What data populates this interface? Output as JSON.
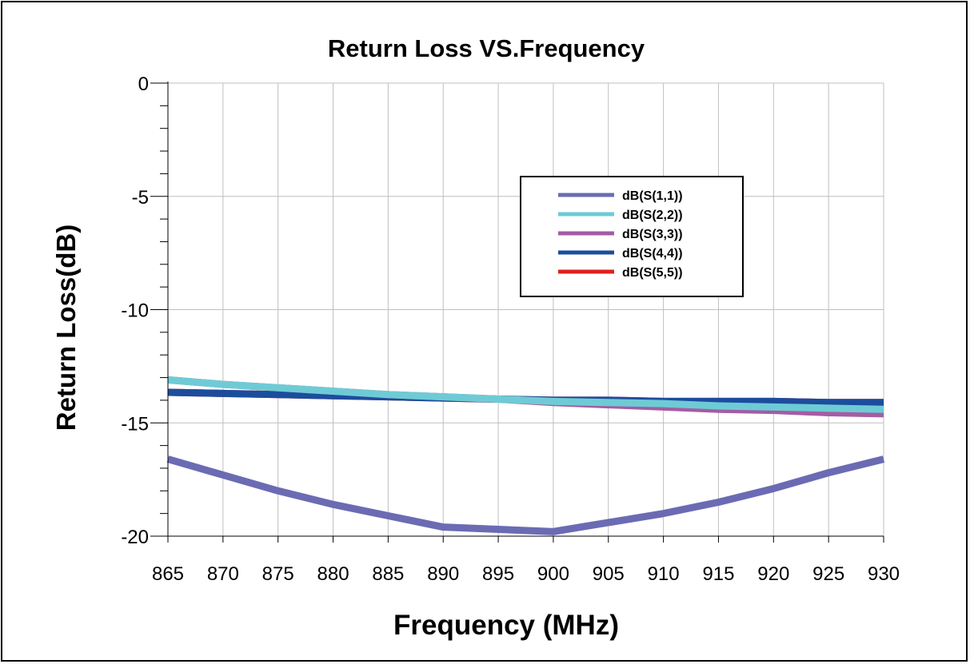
{
  "chart_data": {
    "type": "line",
    "title": "Return Loss VS.Frequency",
    "xlabel": "Frequency (MHz)",
    "ylabel": "Return Loss(dB)",
    "xlim": [
      865,
      930
    ],
    "ylim": [
      -20,
      0
    ],
    "x_ticks": [
      865,
      870,
      875,
      880,
      885,
      890,
      895,
      900,
      905,
      910,
      915,
      920,
      925,
      930
    ],
    "y_ticks": [
      0,
      -5,
      -10,
      -15,
      -20
    ],
    "grid": true,
    "legend_position": "upper-right",
    "x": [
      865,
      870,
      875,
      880,
      885,
      890,
      895,
      900,
      905,
      910,
      915,
      920,
      925,
      930
    ],
    "series": [
      {
        "name": "dB(S(1,1))",
        "color": "#6b6bb4",
        "values": [
          -16.6,
          -17.3,
          -18.0,
          -18.6,
          -19.1,
          -19.6,
          -19.7,
          -19.8,
          -19.4,
          -19.0,
          -18.5,
          -17.9,
          -17.2,
          -16.6
        ]
      },
      {
        "name": "dB(S(2,2))",
        "color": "#6ecbd5",
        "values": [
          -13.1,
          -13.3,
          -13.45,
          -13.6,
          -13.75,
          -13.85,
          -13.95,
          -14.05,
          -14.1,
          -14.15,
          -14.25,
          -14.3,
          -14.35,
          -14.4
        ]
      },
      {
        "name": "dB(S(3,3))",
        "color": "#a45ca4",
        "values": [
          -13.1,
          -13.3,
          -13.45,
          -13.6,
          -13.75,
          -13.85,
          -13.95,
          -14.1,
          -14.2,
          -14.3,
          -14.4,
          -14.45,
          -14.55,
          -14.6
        ]
      },
      {
        "name": "dB(S(4,4))",
        "color": "#1c4d9d",
        "values": [
          -13.65,
          -13.7,
          -13.75,
          -13.8,
          -13.85,
          -13.9,
          -13.95,
          -14.0,
          -14.0,
          -14.05,
          -14.05,
          -14.05,
          -14.1,
          -14.1
        ]
      },
      {
        "name": "dB(S(5,5))",
        "color": "#e0211d",
        "values": [
          -13.65,
          -13.7,
          -13.75,
          -13.8,
          -13.85,
          -13.9,
          -13.95,
          -14.0,
          -14.0,
          -14.05,
          -14.05,
          -14.05,
          -14.1,
          -14.1
        ]
      }
    ],
    "draw_order": [
      4,
      3,
      2,
      1,
      0
    ]
  }
}
